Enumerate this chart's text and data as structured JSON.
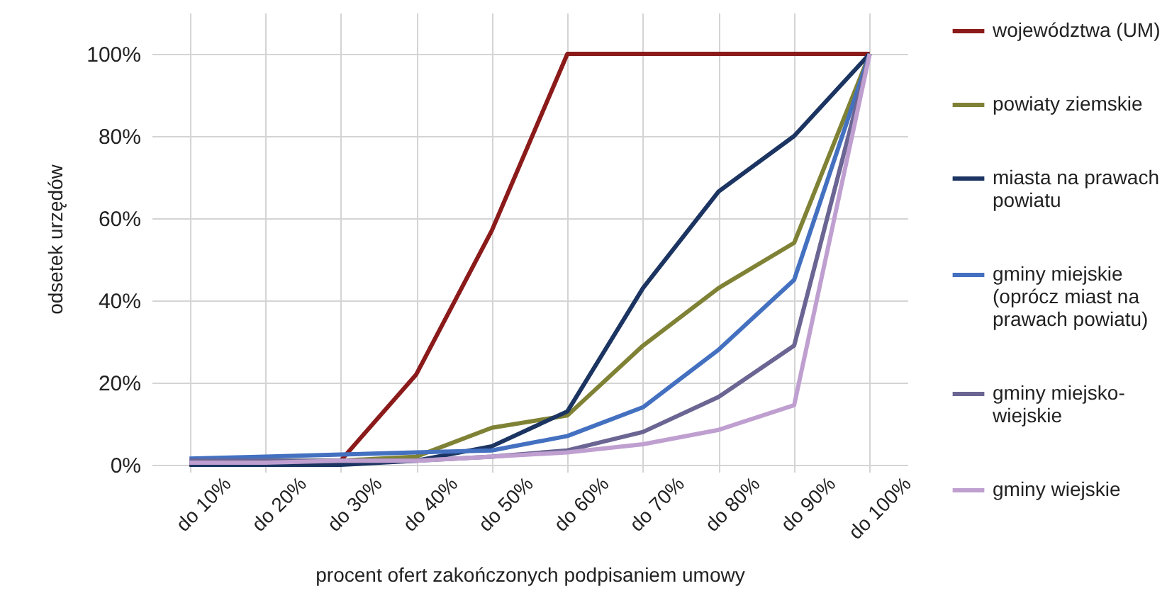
{
  "chart_data": {
    "type": "line",
    "xlabel": "procent ofert zakończonych podpisaniem umowy",
    "ylabel": "odsetek urzędów",
    "categories": [
      "do 10%",
      "do 20%",
      "do 30%",
      "do 40%",
      "do 50%",
      "do 60%",
      "do 70%",
      "do 80%",
      "do 90%",
      "do 100%"
    ],
    "series": [
      {
        "name": "województwa (UM)",
        "color": "#8b1a1a",
        "values": [
          0,
          0,
          1,
          22,
          57,
          100,
          100,
          100,
          100,
          100
        ]
      },
      {
        "name": "powiaty ziemskie",
        "color": "#7f8235",
        "values": [
          0.5,
          1,
          1,
          2,
          9,
          12,
          29,
          43,
          54,
          100
        ]
      },
      {
        "name": "miasta na prawach powiatu",
        "color": "#1b3461",
        "values": [
          0,
          0,
          0,
          1,
          4.5,
          13,
          43,
          66.5,
          80,
          100
        ]
      },
      {
        "name": "gminy miejskie (oprócz miast na prawach powiatu)",
        "color": "#4470c0",
        "values": [
          1.5,
          2,
          2.5,
          3,
          3.5,
          7,
          14,
          28,
          45,
          100
        ]
      },
      {
        "name": "gminy miejsko-wiejskie",
        "color": "#6a6592",
        "values": [
          1,
          1,
          1,
          1,
          2,
          3.5,
          8,
          16.5,
          29,
          100
        ]
      },
      {
        "name": "gminy wiejskie",
        "color": "#bf9fd0",
        "values": [
          0.5,
          0.5,
          1,
          1,
          2,
          3,
          5,
          8.5,
          14.5,
          100
        ]
      }
    ],
    "ylim": [
      0,
      110
    ],
    "yticks": [
      {
        "value": 0,
        "label": "0%"
      },
      {
        "value": 20,
        "label": "20%"
      },
      {
        "value": 40,
        "label": "40%"
      },
      {
        "value": 60,
        "label": "60%"
      },
      {
        "value": 80,
        "label": "80%"
      },
      {
        "value": 100,
        "label": "100%"
      }
    ],
    "grid": true,
    "legend": "right"
  }
}
